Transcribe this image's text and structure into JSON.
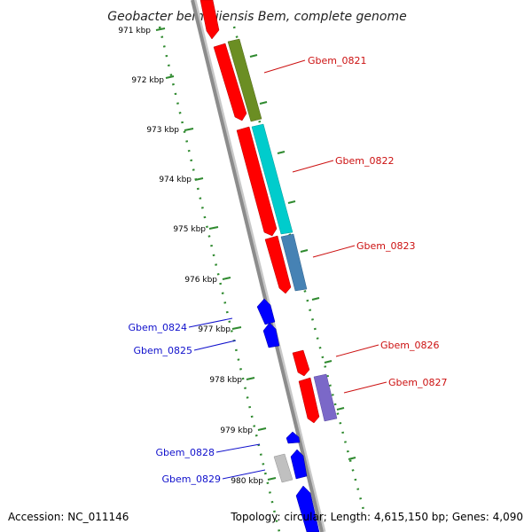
{
  "title": "Geobacter bemidjiensis Bem, complete genome",
  "footer": {
    "accession": "Accession: NC_011146",
    "topology": "Topology: circular; Length: 4,615,150 bp; Genes: 4,090"
  },
  "colors": {
    "backbone": "#909090",
    "tick": "#2f8a2f",
    "forward_label": "#cc1111",
    "reverse_label": "#1010cc",
    "cds_forward": "#ff0000",
    "cds_reverse": "#0000ff",
    "gene_0821": "#6b8e23",
    "gene_0822": "#00cccc",
    "gene_0823": "#4682b4",
    "gene_0827": "#7b68c8",
    "gene_0829": "#c0c0c0"
  },
  "kbp_labels": [
    "971 kbp",
    "972 kbp",
    "973 kbp",
    "974 kbp",
    "975 kbp",
    "976 kbp",
    "977 kbp",
    "978 kbp",
    "979 kbp",
    "980 kbp"
  ],
  "gene_labels": {
    "forward": [
      "Gbem_0821",
      "Gbem_0822",
      "Gbem_0823",
      "Gbem_0826",
      "Gbem_0827"
    ],
    "reverse": [
      "Gbem_0824",
      "Gbem_0825",
      "Gbem_0828",
      "Gbem_0829"
    ]
  }
}
